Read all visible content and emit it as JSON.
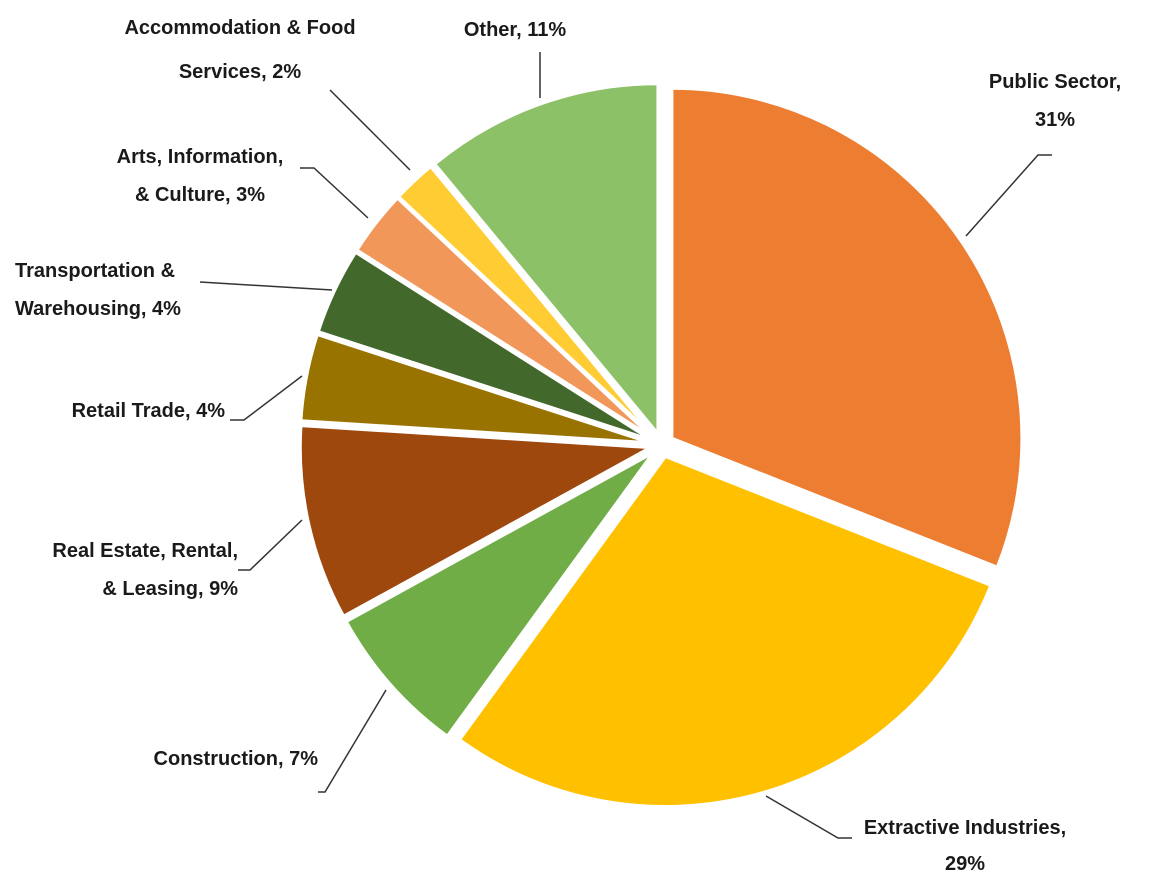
{
  "chart_data": {
    "type": "pie",
    "title": "",
    "categories": [
      "Public Sector",
      "Extractive Industries",
      "Construction",
      "Real Estate, Rental, & Leasing",
      "Retail Trade",
      "Transportation & Warehousing",
      "Arts, Information, & Culture",
      "Accommodation & Food Services",
      "Other"
    ],
    "values": [
      31,
      29,
      7,
      9,
      4,
      4,
      3,
      2,
      11
    ],
    "unit": "%",
    "colors": [
      "#ED7D31",
      "#FFC000",
      "#70AD47",
      "#9E480E",
      "#997300",
      "#43682B",
      "#F1975A",
      "#FFCD33",
      "#8CC168"
    ],
    "label_lines": [
      [
        "Public Sector,",
        "31%"
      ],
      [
        "Extractive Industries,",
        "29%"
      ],
      [
        "Construction, 7%"
      ],
      [
        "Real Estate, Rental,",
        "& Leasing, 9%"
      ],
      [
        "Retail Trade, 4%"
      ],
      [
        "Transportation &",
        "Warehousing, 4%"
      ],
      [
        "Arts, Information,",
        "& Culture, 3%"
      ],
      [
        "Accommodation & Food",
        "Services, 2%"
      ],
      [
        "Other, 11%"
      ]
    ],
    "legend": "none (data labels with leader lines)"
  }
}
